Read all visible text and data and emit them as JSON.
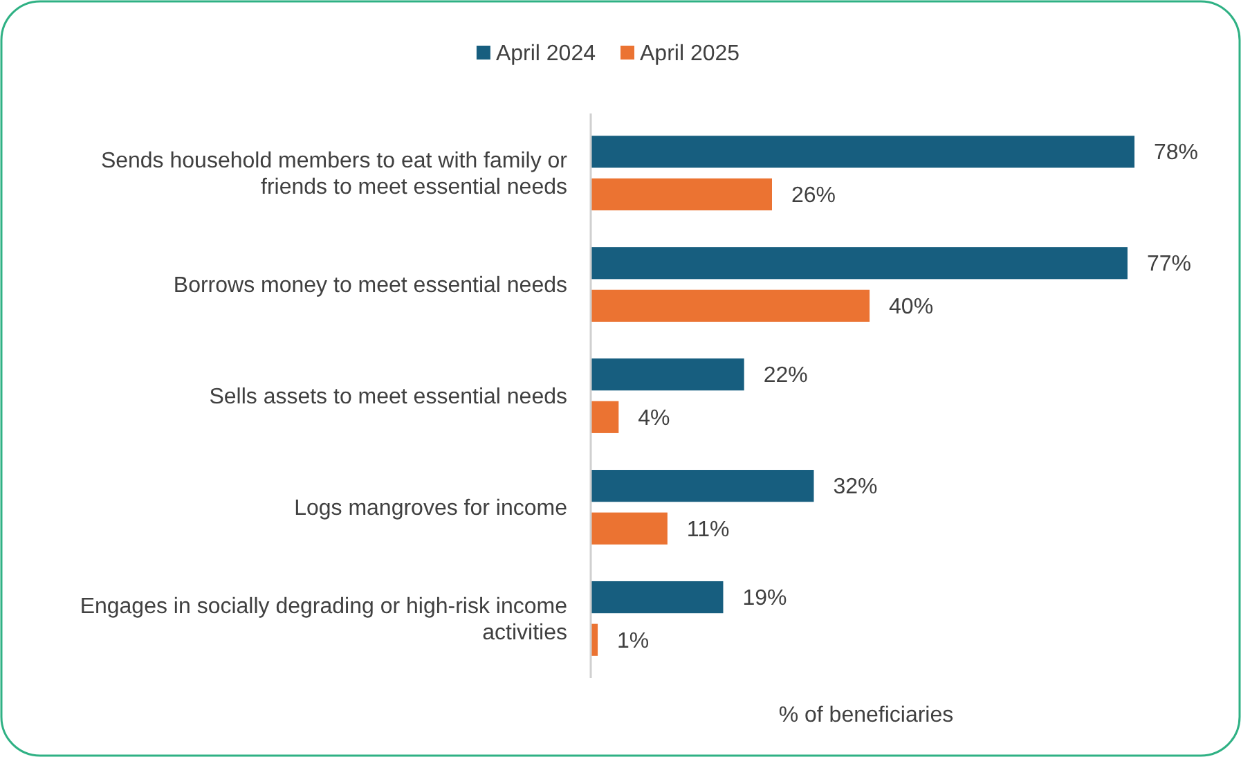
{
  "chart_data": {
    "type": "bar",
    "orientation": "horizontal",
    "xlabel": "% of beneficiaries",
    "legend": "top",
    "grid": false,
    "categories": [
      "Sends household members to eat with family or friends to meet essential needs",
      "Borrows money to meet essential needs",
      "Sells assets to meet essential needs",
      "Logs mangroves for income",
      "Engages in socially degrading or high-risk income activities"
    ],
    "series": [
      {
        "name": "April 2024",
        "color": "#175e7f",
        "values": [
          78,
          77,
          22,
          32,
          19
        ],
        "value_labels": [
          "78%",
          "77%",
          "22%",
          "32%",
          "19%"
        ]
      },
      {
        "name": "April 2025",
        "color": "#eb7332",
        "values": [
          26,
          40,
          4,
          11,
          1
        ],
        "value_labels": [
          "26%",
          "40%",
          "4%",
          "11%",
          "1%"
        ]
      }
    ]
  }
}
